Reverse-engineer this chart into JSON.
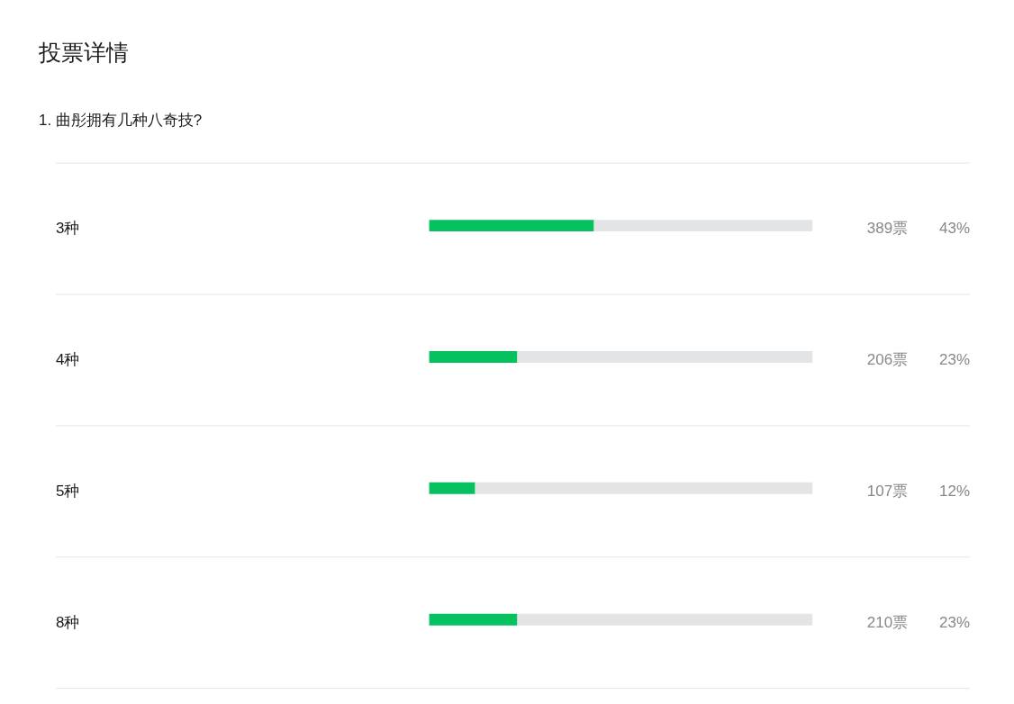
{
  "chart_data": {
    "type": "bar",
    "orientation": "horizontal",
    "stacked": true,
    "title": "投票详情",
    "subtitle": "1. 曲彤拥有几种八奇技?",
    "categories": [
      "3种",
      "4种",
      "5种",
      "8种"
    ],
    "series": [
      {
        "color": "#07c160",
        "values": [
          43,
          23,
          12,
          23
        ],
        "value_labels": [
          "43%",
          "23%",
          "12%",
          "23%"
        ]
      },
      {
        "color": "#e3e4e6",
        "values": [
          57,
          77,
          88,
          77
        ]
      }
    ],
    "xlim": [
      0,
      100
    ],
    "annotations": [
      "389票",
      "206票",
      "107票",
      "210票"
    ],
    "grid": "y",
    "tick_labels": "y"
  }
}
